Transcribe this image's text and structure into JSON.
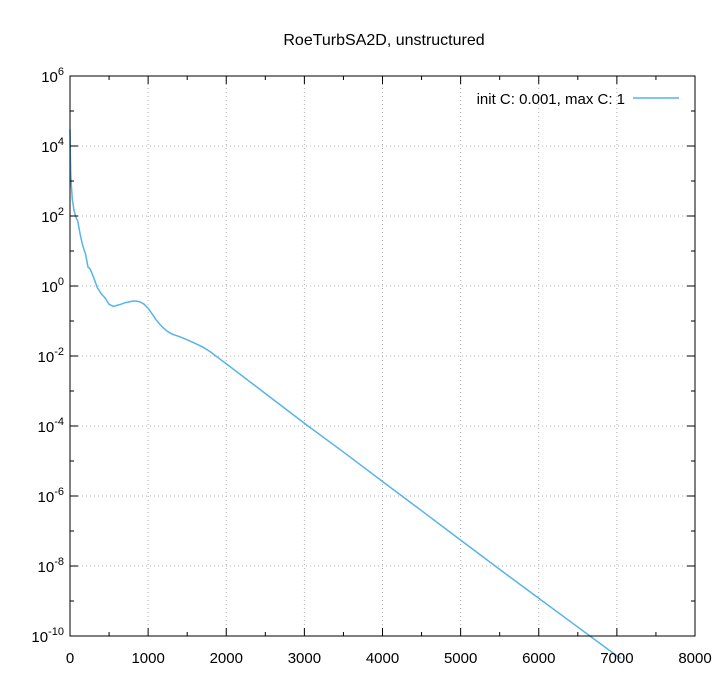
{
  "chart_data": {
    "type": "line",
    "title": "RoeTurbSA2D, unstructured",
    "xlabel": "",
    "ylabel": "",
    "xlim": [
      0,
      8000
    ],
    "ylim": [
      1e-10,
      1000000.0
    ],
    "yscale": "log",
    "grid": true,
    "legend_position": "top-right",
    "x_ticks": [
      0,
      1000,
      2000,
      3000,
      4000,
      5000,
      6000,
      7000,
      8000
    ],
    "y_tick_exponents": [
      -10,
      -8,
      -6,
      -4,
      -2,
      0,
      2,
      4,
      6
    ],
    "series": [
      {
        "name": "init C: 0.001, max C: 1",
        "color": "#56b4e9",
        "x": [
          0,
          5,
          10,
          20,
          30,
          50,
          70,
          100,
          130,
          160,
          200,
          230,
          260,
          300,
          350,
          400,
          450,
          500,
          560,
          600,
          650,
          700,
          750,
          800,
          850,
          900,
          950,
          1000,
          1050,
          1100,
          1150,
          1200,
          1250,
          1300,
          1350,
          1400,
          1500,
          1600,
          1700,
          1800,
          1900,
          2000,
          2500,
          3000,
          3500,
          4000,
          4500,
          5000,
          5500,
          6000,
          6500,
          7000,
          7050
        ],
        "y": [
          30000,
          5000,
          1500,
          600,
          300,
          150,
          100,
          70,
          30,
          15,
          8,
          3.5,
          3,
          1.8,
          0.9,
          0.6,
          0.45,
          0.3,
          0.26,
          0.28,
          0.3,
          0.33,
          0.35,
          0.37,
          0.37,
          0.35,
          0.3,
          0.23,
          0.16,
          0.11,
          0.08,
          0.062,
          0.05,
          0.043,
          0.039,
          0.036,
          0.029,
          0.023,
          0.018,
          0.013,
          0.0088,
          0.006,
          0.00085,
          0.00012,
          1.8e-05,
          2.6e-06,
          3.8e-07,
          5.5e-08,
          8e-09,
          1.2e-09,
          1.8e-10,
          2.7e-11,
          2.3e-11
        ]
      }
    ]
  }
}
